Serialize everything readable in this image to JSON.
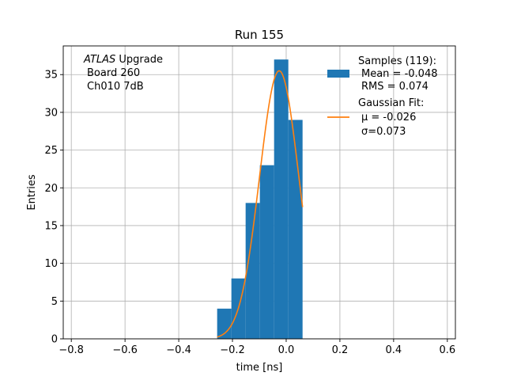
{
  "chart_data": {
    "type": "bar",
    "title": "Run 155",
    "xlabel": "time [ns]",
    "ylabel": "Entries",
    "xlim": [
      -0.83,
      0.63
    ],
    "ylim": [
      0,
      38.8
    ],
    "x_ticks": [
      -0.8,
      -0.6,
      -0.4,
      -0.2,
      0.0,
      0.2,
      0.4,
      0.6
    ],
    "x_tick_labels": [
      "−0.8",
      "−0.6",
      "−0.4",
      "−0.2",
      "0.0",
      "0.2",
      "0.4",
      "0.6"
    ],
    "y_ticks": [
      0,
      5,
      10,
      15,
      20,
      25,
      30,
      35
    ],
    "y_tick_labels": [
      "0",
      "5",
      "10",
      "15",
      "20",
      "25",
      "30",
      "35"
    ],
    "grid": true,
    "bar_color": "#1f77b4",
    "fit_color": "#ff7f0e",
    "histogram": {
      "bin_edges": [
        -0.257,
        -0.204,
        -0.151,
        -0.098,
        -0.045,
        0.008,
        0.061
      ],
      "counts": [
        4,
        8,
        18,
        23,
        37,
        29
      ]
    },
    "gaussian_fit": {
      "amplitude": 35.5,
      "mu": -0.026,
      "sigma": 0.073,
      "x_range": [
        -0.257,
        0.061
      ]
    },
    "annotation": {
      "line1_italic": "ATLAS",
      "line1_rest": " Upgrade",
      "line2": "Board 260",
      "line3": "Ch010 7dB"
    },
    "legend": {
      "position": "upper right",
      "samples": {
        "line1": "Samples (119):",
        "line2": "Mean = -0.048",
        "line3": "RMS = 0.074"
      },
      "fit": {
        "line1": "Gaussian Fit:",
        "line2": "μ = -0.026",
        "line3": "σ=0.073"
      }
    }
  }
}
